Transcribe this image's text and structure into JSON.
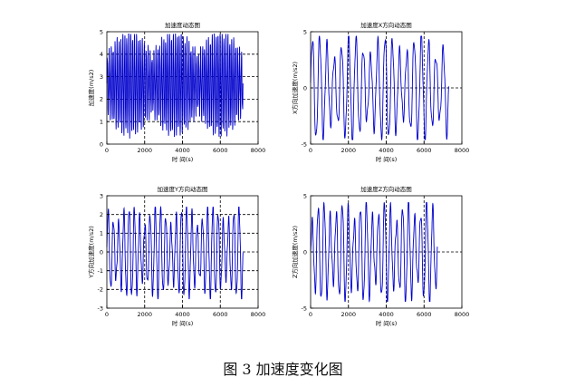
{
  "caption": "图 3  加速度变化图",
  "chart_data": [
    {
      "type": "line",
      "title": "加速度动态图",
      "xlabel": "时 间(s)",
      "ylabel": "加速度(m/s2)",
      "xlim": [
        0,
        8000
      ],
      "ylim": [
        0,
        5
      ],
      "xticks": [
        "0",
        "2000",
        "4000",
        "6000",
        "8000"
      ],
      "yticks": [
        "0",
        "1",
        "2",
        "3",
        "4",
        "5"
      ],
      "grid_y": [
        1,
        2,
        3,
        4
      ],
      "grid_x": [
        2000,
        4000,
        6000
      ],
      "signal": {
        "x_start": 0,
        "x_end": 7200,
        "center": 2.7,
        "amplitude": 2.2,
        "peak": 4.9,
        "trough": 0.1,
        "cycles": 70
      },
      "color": "#0000cc"
    },
    {
      "type": "line",
      "title": "加速度X方向动态图",
      "xlabel": "时 间(s)",
      "ylabel": "X方向加速度(m/s2)",
      "xlim": [
        0,
        8000
      ],
      "ylim": [
        -5,
        5
      ],
      "xticks": [
        "0",
        "2000",
        "4000",
        "6000",
        "8000"
      ],
      "yticks": [
        "-5",
        "0",
        "5"
      ],
      "grid_y": [
        0
      ],
      "grid_x": [
        2000,
        4000,
        6000
      ],
      "signal": {
        "x_start": 0,
        "x_end": 7300,
        "center": 0,
        "amplitude": 4.6,
        "peak": 4.6,
        "trough": -4.6,
        "cycles": 19
      },
      "color": "#0000cc"
    },
    {
      "type": "line",
      "title": "加速度Y方向动态图",
      "xlabel": "时 间(s)",
      "ylabel": "Y方向加速度(m/s2)",
      "xlim": [
        0,
        8000
      ],
      "ylim": [
        -3,
        3
      ],
      "xticks": [
        "0",
        "2000",
        "4000",
        "6000",
        "8000"
      ],
      "yticks": [
        "-3",
        "-2",
        "-1",
        "0",
        "1",
        "2",
        "3"
      ],
      "grid_y": [
        -2,
        -1,
        0,
        1,
        2
      ],
      "grid_x": [
        2000,
        4000,
        6000
      ],
      "signal": {
        "x_start": 0,
        "x_end": 7200,
        "center": 0,
        "amplitude": 2.4,
        "peak": 2.4,
        "trough": -2.5,
        "cycles": 26
      },
      "color": "#0000cc"
    },
    {
      "type": "line",
      "title": "加速度Z方向动态图",
      "xlabel": "时 间(s)",
      "ylabel": "Z方向加速度(m/s2)",
      "xlim": [
        0,
        8000
      ],
      "ylim": [
        -5,
        5
      ],
      "xticks": [
        "0",
        "2000",
        "4000",
        "6000",
        "8000"
      ],
      "yticks": [
        "-5",
        "0",
        "5"
      ],
      "grid_y": [
        0
      ],
      "grid_x": [
        2000,
        4000,
        6000
      ],
      "signal": {
        "x_start": 0,
        "x_end": 6700,
        "center": 0,
        "amplitude": 4.4,
        "peak": 4.4,
        "trough": -4.4,
        "cycles": 21
      },
      "color": "#0000cc"
    }
  ]
}
